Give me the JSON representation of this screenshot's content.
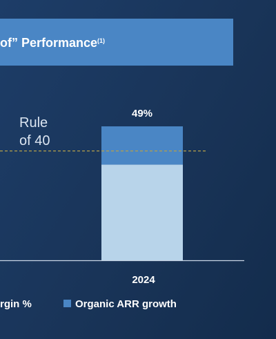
{
  "title": {
    "text": "of” Performance",
    "note": "(1)"
  },
  "chart_data": {
    "type": "bar",
    "categories": [
      "2024"
    ],
    "series": [
      {
        "name": "rgin %",
        "values": [
          35
        ],
        "color": "#b8d4ea"
      },
      {
        "name": "Organic ARR growth",
        "values": [
          14
        ],
        "color": "#4a86c5"
      }
    ],
    "totals": [
      "49%"
    ],
    "reference_line": {
      "value": 40,
      "label_line1": "Rule",
      "label_line2": "of 40",
      "color": "#b5a04a"
    },
    "ylim": [
      0,
      55
    ],
    "legend": "bottom"
  }
}
